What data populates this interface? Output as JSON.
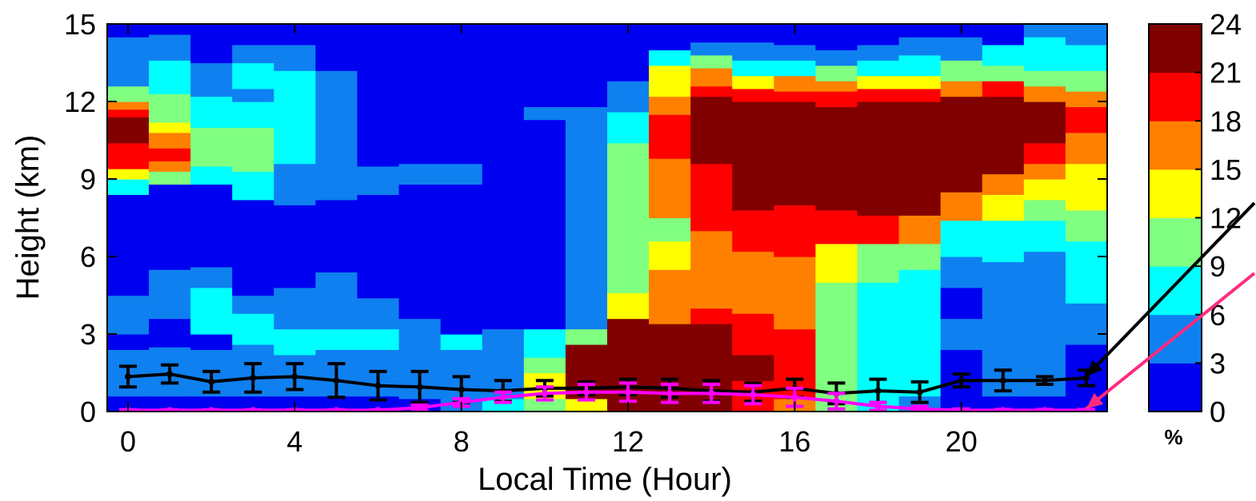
{
  "chart_data": {
    "type": "heatmap",
    "title": "",
    "xlabel": "Local Time (Hour)",
    "ylabel": "Height (km)",
    "xlim": [
      -0.5,
      23.5
    ],
    "ylim": [
      0,
      15
    ],
    "x_ticks": [
      "0",
      "4",
      "8",
      "12",
      "16",
      "20"
    ],
    "y_ticks": [
      "0",
      "3",
      "6",
      "9",
      "12",
      "15"
    ],
    "colorbar": {
      "label": "%",
      "ticks": [
        "0",
        "3",
        "6",
        "9",
        "12",
        "15",
        "18",
        "21",
        "24"
      ],
      "range": [
        0,
        24
      ],
      "colors": [
        "#0000f0",
        "#0f80f0",
        "#00ffff",
        "#80ff80",
        "#ffff00",
        "#ff8000",
        "#ff0000",
        "#800000"
      ]
    },
    "hours": [
      0,
      1,
      2,
      3,
      4,
      5,
      6,
      7,
      8,
      9,
      10,
      11,
      12,
      13,
      14,
      15,
      16,
      17,
      18,
      19,
      20,
      21,
      22,
      23
    ],
    "cloud_frequency_profiles": [
      [
        [
          0,
          0.6,
          0
        ],
        [
          0.6,
          2.4,
          1
        ],
        [
          2.4,
          3.0,
          0
        ],
        [
          3.0,
          4.5,
          1
        ],
        [
          4.5,
          8.4,
          0
        ],
        [
          8.4,
          9.0,
          2
        ],
        [
          9.0,
          9.4,
          4
        ],
        [
          9.4,
          10.4,
          6
        ],
        [
          10.4,
          11.4,
          7
        ],
        [
          11.4,
          11.7,
          6
        ],
        [
          11.7,
          12.0,
          5
        ],
        [
          12.0,
          12.6,
          3
        ],
        [
          12.6,
          14.5,
          1
        ],
        [
          14.5,
          15,
          0
        ]
      ],
      [
        [
          0,
          0.6,
          0
        ],
        [
          0.6,
          2.5,
          1
        ],
        [
          2.5,
          3.6,
          0
        ],
        [
          3.6,
          5.5,
          1
        ],
        [
          5.5,
          8.8,
          0
        ],
        [
          8.8,
          9.3,
          3
        ],
        [
          9.3,
          9.7,
          5
        ],
        [
          9.7,
          10.2,
          6
        ],
        [
          10.2,
          10.8,
          5
        ],
        [
          10.8,
          11.2,
          4
        ],
        [
          11.2,
          12.3,
          3
        ],
        [
          12.3,
          13.6,
          2
        ],
        [
          13.6,
          14.6,
          1
        ],
        [
          14.6,
          15,
          0
        ]
      ],
      [
        [
          0,
          0.6,
          0
        ],
        [
          0.6,
          2.4,
          1
        ],
        [
          2.4,
          3.0,
          0
        ],
        [
          3.0,
          4.8,
          2
        ],
        [
          4.8,
          5.6,
          1
        ],
        [
          5.6,
          8.8,
          0
        ],
        [
          8.8,
          9.5,
          2
        ],
        [
          9.5,
          11.0,
          3
        ],
        [
          11.0,
          12.2,
          2
        ],
        [
          12.2,
          13.5,
          1
        ],
        [
          13.5,
          15,
          0
        ]
      ],
      [
        [
          0,
          0.6,
          0
        ],
        [
          0.6,
          2.6,
          1
        ],
        [
          2.6,
          3.8,
          2
        ],
        [
          3.8,
          4.5,
          1
        ],
        [
          4.5,
          8.2,
          0
        ],
        [
          8.2,
          9.3,
          2
        ],
        [
          9.3,
          11.0,
          3
        ],
        [
          11.0,
          12.0,
          2
        ],
        [
          12.0,
          12.5,
          1
        ],
        [
          12.5,
          13.5,
          2
        ],
        [
          13.5,
          14.2,
          1
        ],
        [
          14.2,
          15,
          0
        ]
      ],
      [
        [
          0,
          0.6,
          0
        ],
        [
          0.6,
          2.2,
          1
        ],
        [
          2.2,
          3.2,
          2
        ],
        [
          3.2,
          4.8,
          1
        ],
        [
          4.8,
          8.0,
          0
        ],
        [
          8.0,
          9.6,
          1
        ],
        [
          9.6,
          10.2,
          2
        ],
        [
          10.2,
          13.2,
          2
        ],
        [
          13.2,
          14.2,
          1
        ],
        [
          14.2,
          15,
          0
        ]
      ],
      [
        [
          0,
          0.6,
          0
        ],
        [
          0.6,
          2.4,
          1
        ],
        [
          2.4,
          3.2,
          2
        ],
        [
          3.2,
          5.4,
          1
        ],
        [
          5.4,
          8.2,
          0
        ],
        [
          8.2,
          9.6,
          1
        ],
        [
          9.6,
          13.2,
          1
        ],
        [
          13.2,
          15,
          0
        ]
      ],
      [
        [
          0,
          0.6,
          0
        ],
        [
          0.6,
          2.4,
          1
        ],
        [
          2.4,
          3.2,
          2
        ],
        [
          3.2,
          4.4,
          1
        ],
        [
          4.4,
          8.4,
          0
        ],
        [
          8.4,
          9.5,
          1
        ],
        [
          9.5,
          15,
          0
        ]
      ],
      [
        [
          0,
          0.5,
          0
        ],
        [
          0.5,
          2.6,
          1
        ],
        [
          2.6,
          3.6,
          1
        ],
        [
          3.6,
          8.8,
          0
        ],
        [
          8.8,
          9.6,
          1
        ],
        [
          9.6,
          15,
          0
        ]
      ],
      [
        [
          0,
          0.6,
          1
        ],
        [
          0.6,
          2.4,
          1
        ],
        [
          2.4,
          3.0,
          2
        ],
        [
          3.0,
          8.8,
          0
        ],
        [
          8.8,
          9.6,
          1
        ],
        [
          9.6,
          15,
          0
        ]
      ],
      [
        [
          0,
          0.5,
          2
        ],
        [
          0.5,
          2.0,
          1
        ],
        [
          2.0,
          3.2,
          1
        ],
        [
          3.2,
          4.2,
          0
        ],
        [
          4.2,
          15,
          0
        ]
      ],
      [
        [
          0,
          0.5,
          3
        ],
        [
          0.5,
          1.5,
          4
        ],
        [
          1.5,
          2.1,
          3
        ],
        [
          2.1,
          3.2,
          2
        ],
        [
          3.2,
          11.3,
          0
        ],
        [
          11.3,
          11.8,
          1
        ],
        [
          11.8,
          15,
          0
        ]
      ],
      [
        [
          0,
          0.5,
          4
        ],
        [
          0.5,
          2.6,
          7
        ],
        [
          2.6,
          3.2,
          3
        ],
        [
          3.2,
          11.8,
          1
        ],
        [
          11.8,
          15,
          0
        ]
      ],
      [
        [
          0,
          3.6,
          7
        ],
        [
          3.6,
          4.6,
          4
        ],
        [
          4.6,
          5.6,
          3
        ],
        [
          5.6,
          10.4,
          3
        ],
        [
          10.4,
          11.6,
          2
        ],
        [
          11.6,
          12.8,
          1
        ],
        [
          12.8,
          15,
          0
        ]
      ],
      [
        [
          0,
          3.4,
          7
        ],
        [
          3.4,
          4.2,
          5
        ],
        [
          4.2,
          5.5,
          5
        ],
        [
          5.5,
          6.6,
          4
        ],
        [
          6.6,
          7.5,
          3
        ],
        [
          7.5,
          9.8,
          5
        ],
        [
          9.8,
          11.5,
          6
        ],
        [
          11.5,
          12.2,
          5
        ],
        [
          12.2,
          13.4,
          4
        ],
        [
          13.4,
          14.0,
          2
        ],
        [
          14.0,
          15,
          0
        ]
      ],
      [
        [
          0,
          3.4,
          7
        ],
        [
          3.4,
          4.0,
          6
        ],
        [
          4.0,
          7.0,
          5
        ],
        [
          7.0,
          9.6,
          6
        ],
        [
          9.6,
          12.2,
          7
        ],
        [
          12.2,
          12.6,
          6
        ],
        [
          12.6,
          13.3,
          5
        ],
        [
          13.3,
          13.8,
          3
        ],
        [
          13.8,
          14.3,
          1
        ],
        [
          14.3,
          15,
          0
        ]
      ],
      [
        [
          0,
          1.2,
          6
        ],
        [
          1.2,
          2.2,
          7
        ],
        [
          2.2,
          3.8,
          6
        ],
        [
          3.8,
          6.2,
          5
        ],
        [
          6.2,
          7.8,
          6
        ],
        [
          7.8,
          12.0,
          7
        ],
        [
          12.0,
          12.5,
          6
        ],
        [
          12.5,
          13.0,
          4
        ],
        [
          13.0,
          13.6,
          2
        ],
        [
          13.6,
          14.3,
          1
        ],
        [
          14.3,
          15,
          0
        ]
      ],
      [
        [
          0,
          0.5,
          5
        ],
        [
          0.5,
          3.2,
          6
        ],
        [
          3.2,
          4.2,
          5
        ],
        [
          4.2,
          6.0,
          5
        ],
        [
          6.0,
          8.0,
          6
        ],
        [
          8.0,
          12.0,
          7
        ],
        [
          12.0,
          12.4,
          6
        ],
        [
          12.4,
          13.0,
          5
        ],
        [
          13.0,
          13.6,
          2
        ],
        [
          13.6,
          14.2,
          1
        ],
        [
          14.2,
          15,
          0
        ]
      ],
      [
        [
          0,
          0.6,
          3
        ],
        [
          0.6,
          2.8,
          3
        ],
        [
          2.8,
          5.0,
          3
        ],
        [
          5.0,
          6.5,
          4
        ],
        [
          6.5,
          7.8,
          6
        ],
        [
          7.8,
          11.8,
          7
        ],
        [
          11.8,
          12.4,
          6
        ],
        [
          12.4,
          12.8,
          5
        ],
        [
          12.8,
          13.4,
          3
        ],
        [
          13.4,
          14.0,
          1
        ],
        [
          14.0,
          15,
          0
        ]
      ],
      [
        [
          0,
          0.6,
          2
        ],
        [
          0.6,
          3.6,
          2
        ],
        [
          3.6,
          5.0,
          2
        ],
        [
          5.0,
          6.5,
          3
        ],
        [
          6.5,
          7.6,
          6
        ],
        [
          7.6,
          12.0,
          7
        ],
        [
          12.0,
          12.5,
          6
        ],
        [
          12.5,
          13.0,
          4
        ],
        [
          13.0,
          13.6,
          2
        ],
        [
          13.6,
          14.2,
          1
        ],
        [
          14.2,
          15,
          0
        ]
      ],
      [
        [
          0,
          0.6,
          1
        ],
        [
          0.6,
          2.8,
          2
        ],
        [
          2.8,
          5.5,
          2
        ],
        [
          5.5,
          6.5,
          3
        ],
        [
          6.5,
          7.6,
          5
        ],
        [
          7.6,
          12.0,
          7
        ],
        [
          12.0,
          12.5,
          6
        ],
        [
          12.5,
          13.0,
          4
        ],
        [
          13.0,
          13.8,
          2
        ],
        [
          13.8,
          14.5,
          1
        ],
        [
          14.5,
          15,
          0
        ]
      ],
      [
        [
          0,
          0.5,
          0
        ],
        [
          0.5,
          2.4,
          0
        ],
        [
          2.4,
          3.6,
          1
        ],
        [
          3.6,
          4.8,
          0
        ],
        [
          4.8,
          6.0,
          1
        ],
        [
          6.0,
          7.4,
          2
        ],
        [
          7.4,
          8.5,
          5
        ],
        [
          8.5,
          12.2,
          7
        ],
        [
          12.2,
          12.8,
          5
        ],
        [
          12.8,
          13.6,
          3
        ],
        [
          13.6,
          14.5,
          1
        ],
        [
          14.5,
          15,
          0
        ]
      ],
      [
        [
          0,
          0.6,
          0
        ],
        [
          0.6,
          2.2,
          1
        ],
        [
          2.2,
          3.6,
          1
        ],
        [
          3.6,
          5.8,
          1
        ],
        [
          5.8,
          7.4,
          2
        ],
        [
          7.4,
          8.4,
          4
        ],
        [
          8.4,
          9.2,
          5
        ],
        [
          9.2,
          12.2,
          7
        ],
        [
          12.2,
          12.8,
          6
        ],
        [
          12.8,
          13.4,
          3
        ],
        [
          13.4,
          14.2,
          2
        ],
        [
          14.2,
          15,
          0
        ]
      ],
      [
        [
          0,
          0.6,
          0
        ],
        [
          0.6,
          2.2,
          1
        ],
        [
          2.2,
          3.6,
          1
        ],
        [
          3.6,
          6.2,
          1
        ],
        [
          6.2,
          7.4,
          2
        ],
        [
          7.4,
          8.2,
          3
        ],
        [
          8.2,
          9.0,
          4
        ],
        [
          9.0,
          9.6,
          5
        ],
        [
          9.6,
          10.4,
          6
        ],
        [
          10.4,
          12.0,
          7
        ],
        [
          12.0,
          12.6,
          5
        ],
        [
          12.6,
          13.2,
          3
        ],
        [
          13.2,
          14.5,
          2
        ],
        [
          14.5,
          15,
          1
        ]
      ],
      [
        [
          0,
          0.6,
          0
        ],
        [
          0.6,
          2.6,
          0
        ],
        [
          2.6,
          4.2,
          1
        ],
        [
          4.2,
          5.6,
          2
        ],
        [
          5.6,
          6.6,
          2
        ],
        [
          6.6,
          7.8,
          3
        ],
        [
          7.8,
          8.8,
          4
        ],
        [
          8.8,
          9.6,
          4
        ],
        [
          9.6,
          10.8,
          5
        ],
        [
          10.8,
          11.8,
          6
        ],
        [
          11.8,
          12.4,
          5
        ],
        [
          12.4,
          13.2,
          3
        ],
        [
          13.2,
          14.2,
          2
        ],
        [
          14.2,
          15,
          1
        ]
      ]
    ],
    "series": [
      {
        "color": "#000000",
        "x": [
          0,
          1,
          2,
          3,
          4,
          5,
          6,
          7,
          8,
          9,
          10,
          11,
          12,
          13,
          14,
          15,
          16,
          17,
          18,
          19,
          20,
          21,
          22,
          23
        ],
        "y": [
          1.35,
          1.45,
          1.15,
          1.3,
          1.35,
          1.2,
          1.0,
          0.95,
          0.85,
          0.8,
          0.9,
          0.9,
          0.95,
          0.9,
          0.8,
          0.75,
          0.9,
          0.7,
          0.8,
          0.75,
          1.2,
          1.2,
          1.2,
          1.3
        ],
        "err": [
          0.4,
          0.35,
          0.4,
          0.55,
          0.5,
          0.65,
          0.55,
          0.6,
          0.5,
          0.4,
          0.3,
          0.25,
          0.3,
          0.35,
          0.4,
          0.35,
          0.35,
          0.4,
          0.45,
          0.4,
          0.25,
          0.4,
          0.15,
          0.3
        ]
      },
      {
        "color": "#ff00ff",
        "x": [
          0,
          1,
          2,
          3,
          4,
          5,
          6,
          7,
          8,
          9,
          10,
          11,
          12,
          13,
          14,
          15,
          16,
          17,
          18,
          19,
          20,
          21,
          22,
          23
        ],
        "y": [
          0.05,
          0.05,
          0.05,
          0.05,
          0.05,
          0.05,
          0.05,
          0.15,
          0.35,
          0.55,
          0.7,
          0.75,
          0.75,
          0.7,
          0.7,
          0.65,
          0.55,
          0.4,
          0.2,
          0.1,
          0.05,
          0.05,
          0.05,
          0.05
        ],
        "err": [
          0.02,
          0.02,
          0.02,
          0.02,
          0.02,
          0.02,
          0.02,
          0.1,
          0.15,
          0.2,
          0.25,
          0.3,
          0.35,
          0.35,
          0.35,
          0.35,
          0.35,
          0.3,
          0.15,
          0.1,
          0.05,
          0.03,
          0.03,
          0.03
        ]
      }
    ],
    "callout_arrows": [
      {
        "color": "#000000",
        "points_to_hour": 23,
        "points_to_height": 1.3
      },
      {
        "color": "#ff2a7f",
        "points_to_hour": 23,
        "points_to_height": 0.05
      }
    ]
  }
}
